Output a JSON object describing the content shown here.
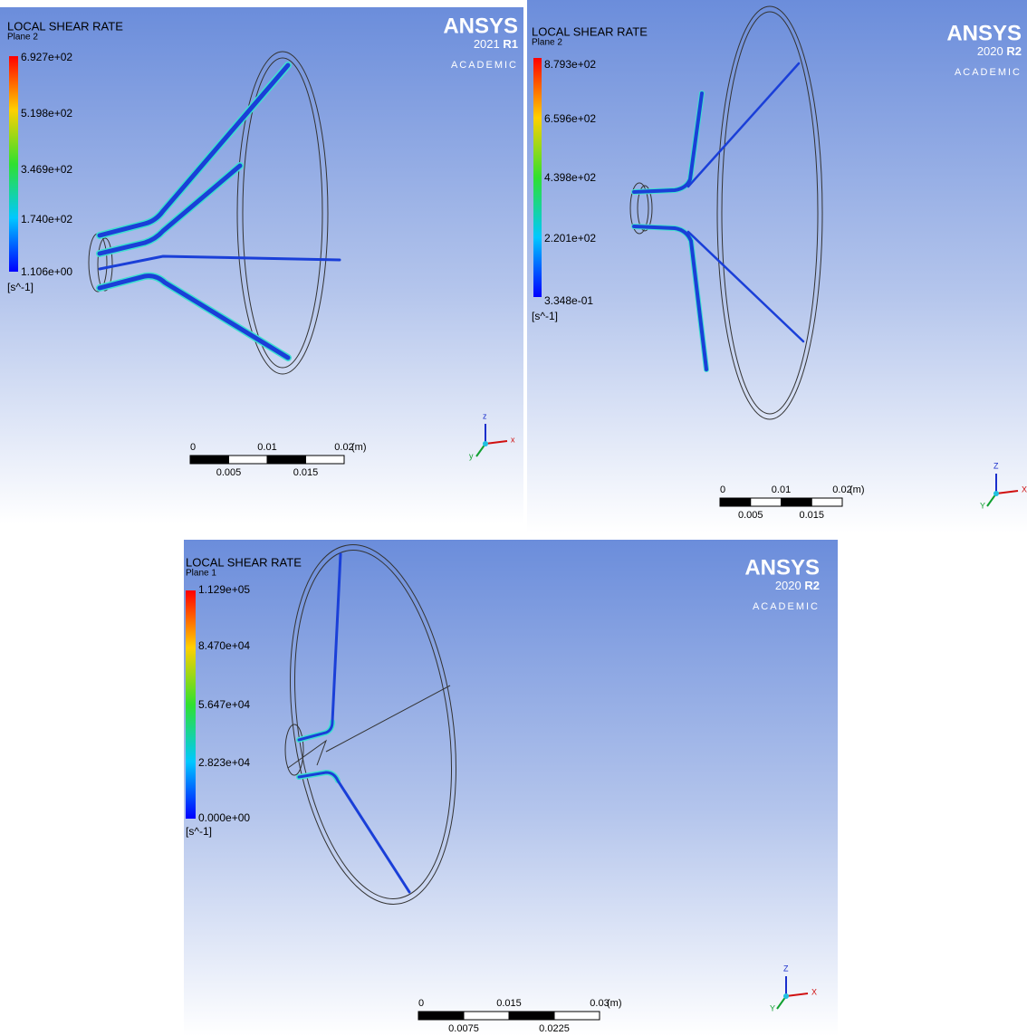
{
  "panels": [
    {
      "title": "LOCAL SHEAR RATE",
      "plane": "Plane 2",
      "legend": [
        "6.927e+02",
        "5.198e+02",
        "3.469e+02",
        "1.740e+02",
        "1.106e+00"
      ],
      "unit": "[s^-1]",
      "logo": "ANSYS",
      "year": "2021",
      "release": "R1",
      "edition": "ACADEMIC",
      "scale_top": [
        "0",
        "0.01",
        "0.02"
      ],
      "scale_bottom": [
        "0.005",
        "0.015"
      ],
      "scale_unit": "(m)",
      "axes": [
        "z",
        "x",
        "y"
      ]
    },
    {
      "title": "LOCAL SHEAR RATE",
      "plane": "Plane 2",
      "legend": [
        "8.793e+02",
        "6.596e+02",
        "4.398e+02",
        "2.201e+02",
        "3.348e-01"
      ],
      "unit": "[s^-1]",
      "logo": "ANSYS",
      "year": "2020",
      "release": "R2",
      "edition": "ACADEMIC",
      "scale_top": [
        "0",
        "0.01",
        "0.02"
      ],
      "scale_bottom": [
        "0.005",
        "0.015"
      ],
      "scale_unit": "(m)",
      "axes": [
        "Z",
        "X",
        "Y"
      ]
    },
    {
      "title": "LOCAL SHEAR RATE",
      "plane": "Plane 1",
      "legend": [
        "1.129e+05",
        "8.470e+04",
        "5.647e+04",
        "2.823e+04",
        "0.000e+00"
      ],
      "unit": "[s^-1]",
      "logo": "ANSYS",
      "year": "2020",
      "release": "R2",
      "edition": "ACADEMIC",
      "scale_top": [
        "0",
        "0.015",
        "0.03"
      ],
      "scale_bottom": [
        "0.0075",
        "0.0225"
      ],
      "scale_unit": "(m)",
      "axes": [
        "Z",
        "X",
        "Y"
      ]
    }
  ]
}
